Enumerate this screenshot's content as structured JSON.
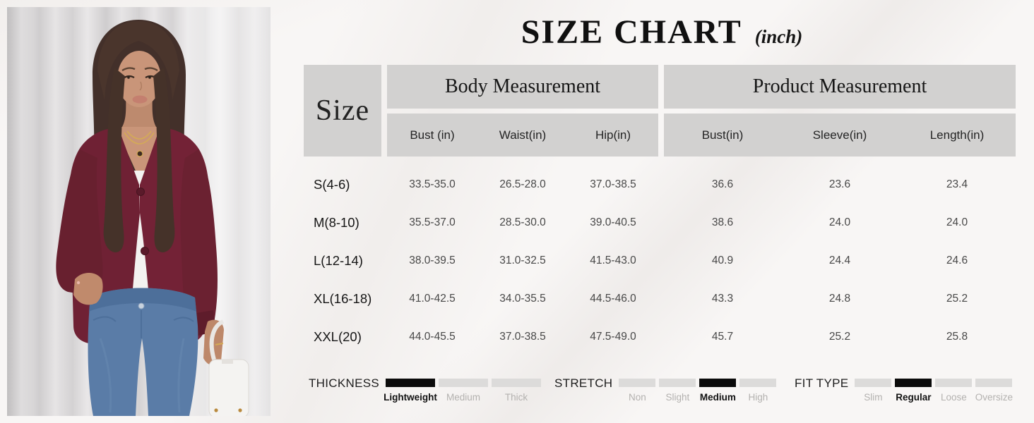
{
  "title": {
    "text": "SIZE CHART",
    "unit": "(inch)"
  },
  "chart_data": {
    "type": "table",
    "title": "SIZE CHART (inch)",
    "size_header": "Size",
    "groups": [
      {
        "label": "Body Measurement",
        "columns": [
          "Bust (in)",
          "Waist(in)",
          "Hip(in)"
        ]
      },
      {
        "label": "Product Measurement",
        "columns": [
          "Bust(in)",
          "Sleeve(in)",
          "Length(in)"
        ]
      }
    ],
    "rows": [
      {
        "size": "S(4-6)",
        "body": [
          "33.5-35.0",
          "26.5-28.0",
          "37.0-38.5"
        ],
        "product": [
          "36.6",
          "23.6",
          "23.4"
        ]
      },
      {
        "size": "M(8-10)",
        "body": [
          "35.5-37.0",
          "28.5-30.0",
          "39.0-40.5"
        ],
        "product": [
          "38.6",
          "24.0",
          "24.0"
        ]
      },
      {
        "size": "L(12-14)",
        "body": [
          "38.0-39.5",
          "31.0-32.5",
          "41.5-43.0"
        ],
        "product": [
          "40.9",
          "24.4",
          "24.6"
        ]
      },
      {
        "size": "XL(16-18)",
        "body": [
          "41.0-42.5",
          "34.0-35.5",
          "44.5-46.0"
        ],
        "product": [
          "43.3",
          "24.8",
          "25.2"
        ]
      },
      {
        "size": "XXL(20)",
        "body": [
          "44.0-45.5",
          "37.0-38.5",
          "47.5-49.0"
        ],
        "product": [
          "45.7",
          "25.2",
          "25.8"
        ]
      }
    ]
  },
  "legend": [
    {
      "label": "THICKNESS",
      "options": [
        "Lightweight",
        "Medium",
        "Thick"
      ],
      "selected": "Lightweight"
    },
    {
      "label": "STRETCH",
      "options": [
        "Non",
        "Slight",
        "Medium",
        "High"
      ],
      "selected": "Medium"
    },
    {
      "label": "FIT TYPE",
      "options": [
        "Slim",
        "Regular",
        "Loose",
        "Oversize"
      ],
      "selected": "Regular"
    }
  ],
  "photo": {
    "description": "Model wearing burgundy button-front cardigan over white tank top with blue jeans, holding white handbag, standing in front of gray curtains"
  },
  "colors": {
    "cardigan": "#6f2134",
    "jeans": "#5a7ca7",
    "header_box": "#d2d1d0",
    "selected_bar": "#0b0b0b",
    "inactive_bar": "#dcdbda",
    "inactive_text": "#b3b1af"
  }
}
